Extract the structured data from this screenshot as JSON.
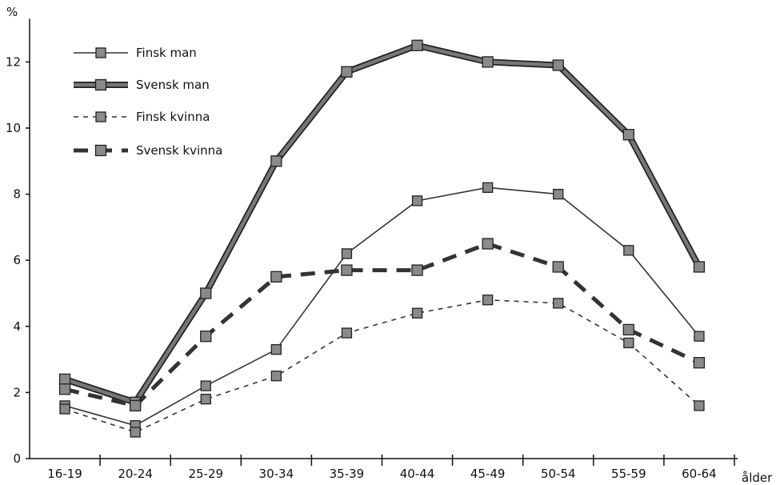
{
  "chart_data": {
    "type": "line",
    "y_unit_label": "%",
    "x_unit_label": "ålder",
    "categories": [
      "16-19",
      "20-24",
      "25-29",
      "30-34",
      "35-39",
      "40-44",
      "45-49",
      "50-54",
      "55-59",
      "60-64"
    ],
    "y_ticks": [
      0,
      2,
      4,
      6,
      8,
      10,
      12
    ],
    "ylim": [
      0,
      13.5
    ],
    "legend_position": "top-left",
    "grid": false,
    "series": [
      {
        "name": "Finsk man",
        "values": [
          1.6,
          1.0,
          2.2,
          3.3,
          6.2,
          7.8,
          8.2,
          8.0,
          6.3,
          3.7
        ],
        "style": "thin-solid"
      },
      {
        "name": "Svensk man",
        "values": [
          2.4,
          1.7,
          5.0,
          9.0,
          11.7,
          12.5,
          12.0,
          11.9,
          9.8,
          5.8
        ],
        "style": "thick-solid"
      },
      {
        "name": "Finsk kvinna",
        "values": [
          1.5,
          0.8,
          1.8,
          2.5,
          3.8,
          4.4,
          4.8,
          4.7,
          3.5,
          1.6
        ],
        "style": "thin-dashed"
      },
      {
        "name": "Svensk kvinna",
        "values": [
          2.1,
          1.6,
          3.7,
          5.5,
          5.7,
          5.7,
          6.5,
          5.8,
          3.9,
          2.9
        ],
        "style": "thick-dashed"
      }
    ]
  }
}
